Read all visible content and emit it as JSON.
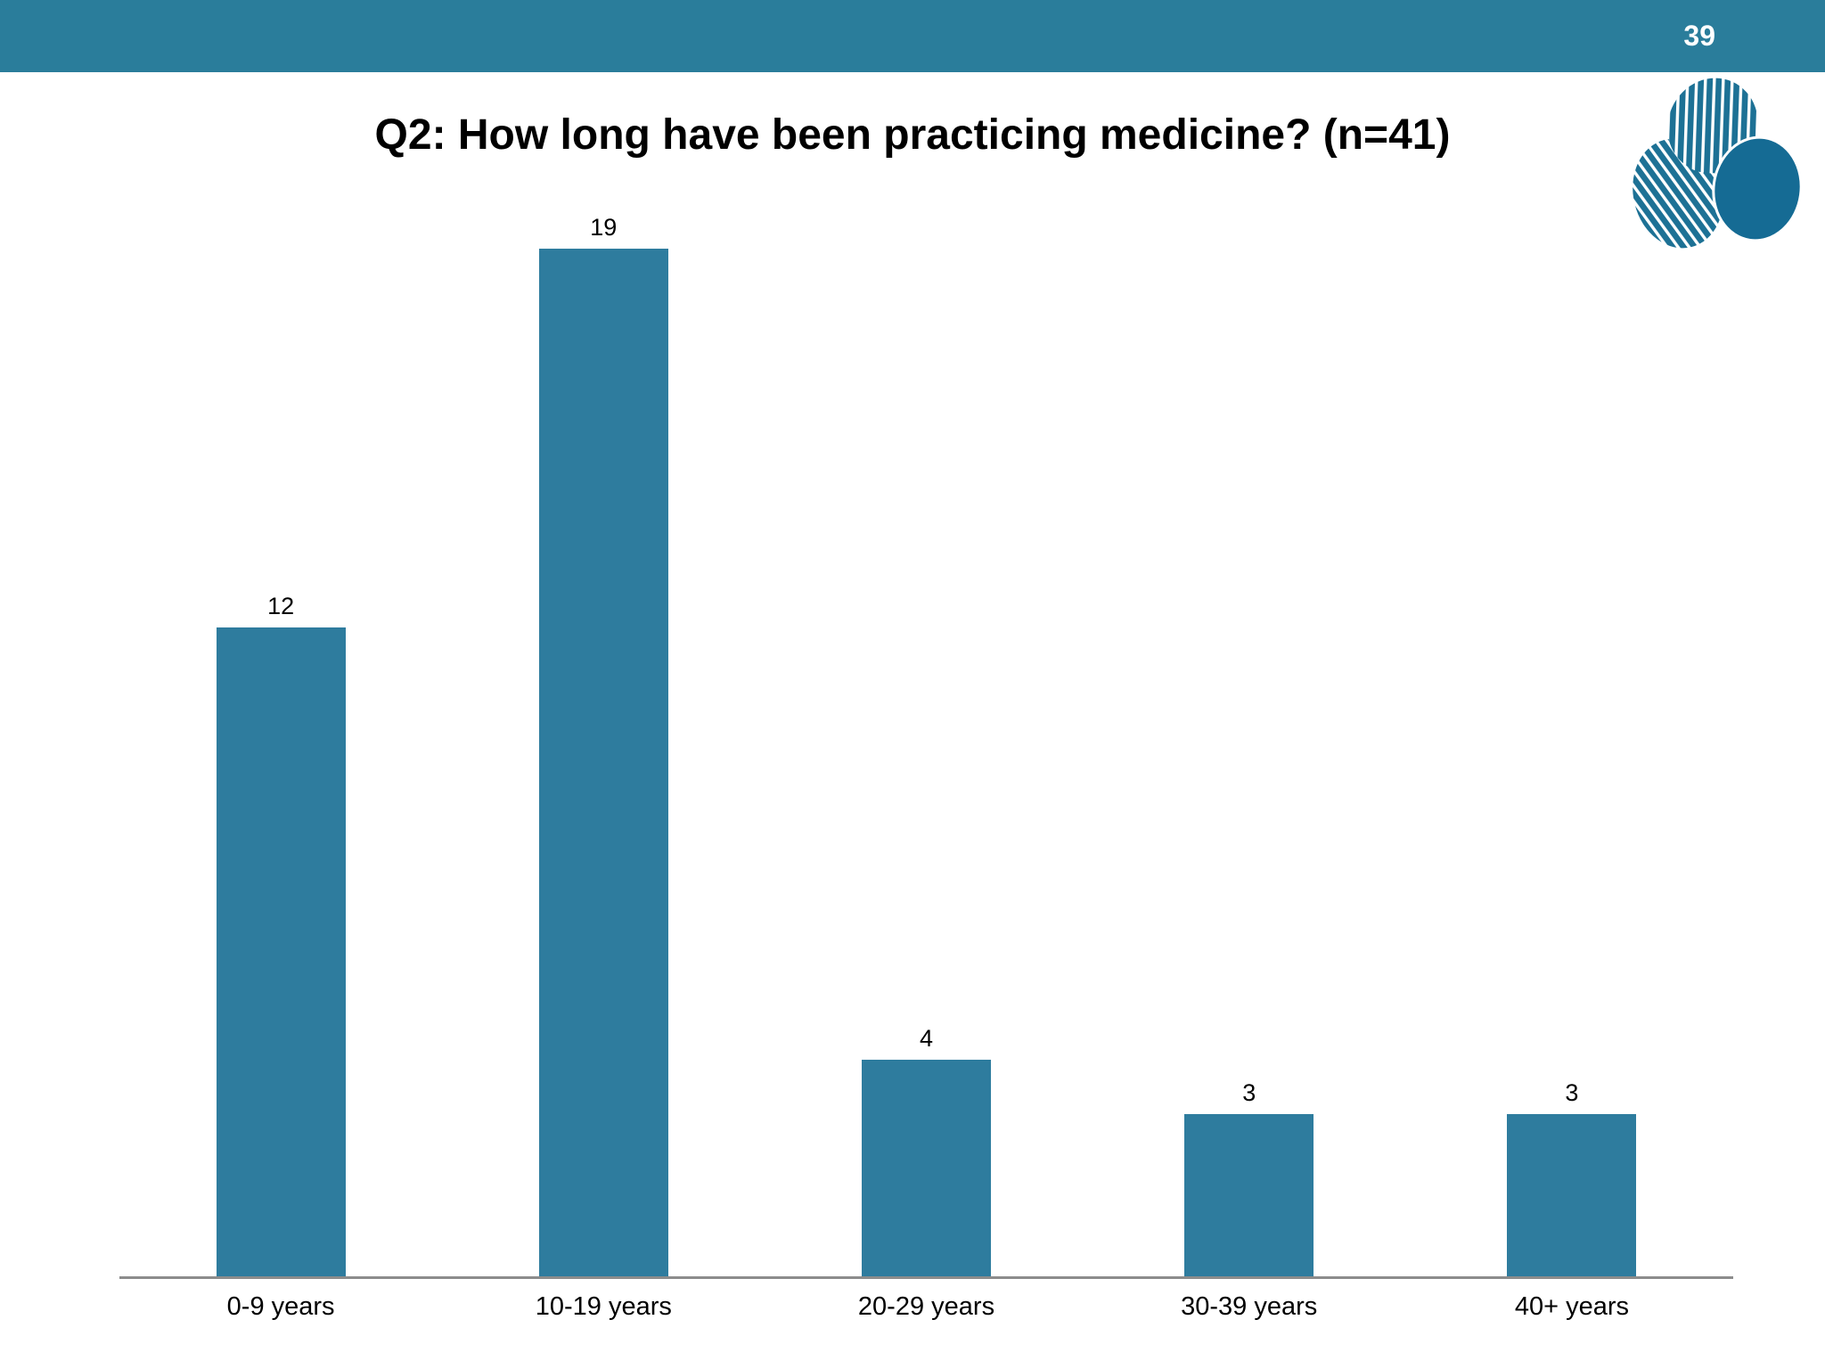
{
  "page": {
    "number": "39"
  },
  "slide": {
    "title": "Q2: How long have been practicing medicine? (n=41)"
  },
  "logo": {
    "name": "three-overlapping-circles-logo"
  },
  "colors": {
    "background": "#FFFFFF",
    "header_bar": "#2A7D9B",
    "bar_fill": "#2E7C9E",
    "axis_line": "#8C8C8C",
    "text": "#000000",
    "page_number": "#FFFFFF",
    "logo_solid": "#156B94",
    "logo_striped": "#1D7195"
  },
  "chart_data": {
    "type": "bar",
    "title": "Q2: How long have been practicing medicine? (n=41)",
    "n": 41,
    "categories": [
      "0-9 years",
      "10-19 years",
      "20-29 years",
      "30-39 years",
      "40+ years"
    ],
    "values": [
      12,
      19,
      4,
      3,
      3
    ],
    "xlabel": "",
    "ylabel": "",
    "ylim": [
      0,
      19
    ],
    "grid": false,
    "legend": false,
    "show_data_labels": true,
    "bar_color": "#2E7C9E"
  }
}
